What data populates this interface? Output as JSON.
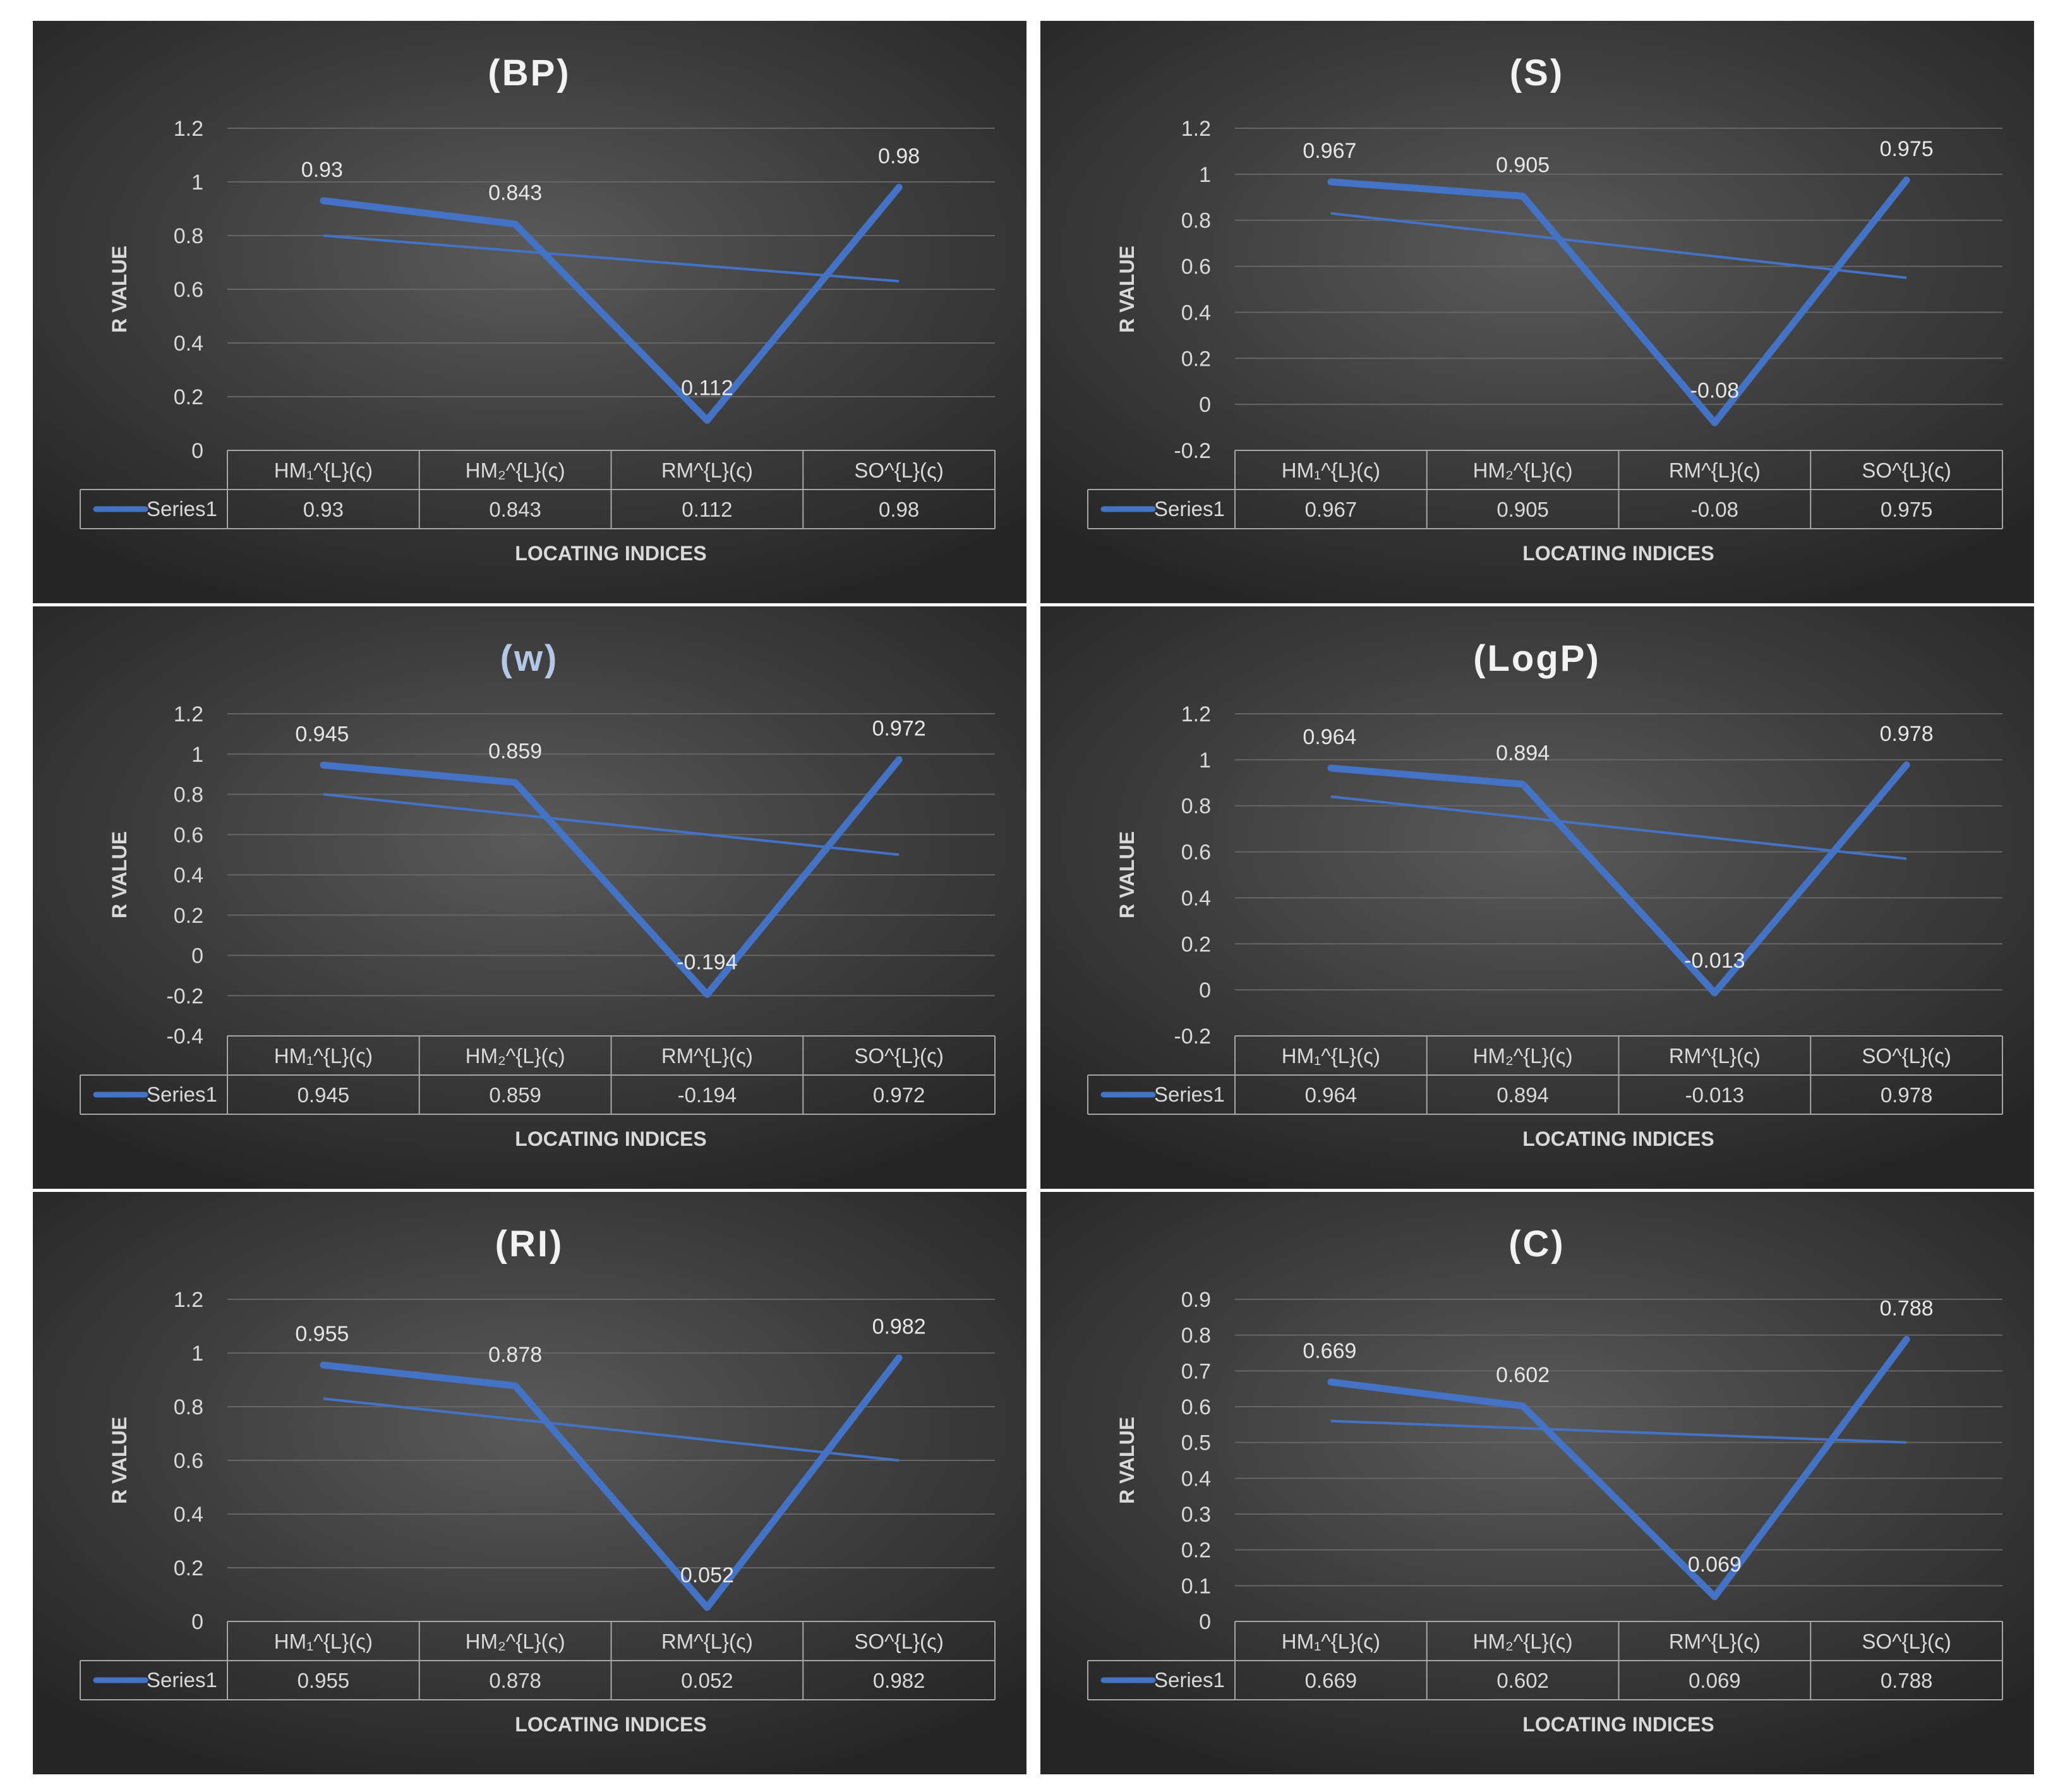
{
  "chart_data": [
    {
      "type": "line",
      "title": "(BP)",
      "title_color": "#f2f2f2",
      "ylabel": "R VALUE",
      "xlabel": "LOCATING INDICES",
      "categories": [
        "HM₁^{L}(ς)",
        "HM₂^{L}(ς)",
        "RM^{L}(ς)",
        "SO^{L}(ς)"
      ],
      "ylim": [
        0,
        1.2
      ],
      "yticks": [
        0,
        0.2,
        0.4,
        0.6,
        0.8,
        1,
        1.2
      ],
      "ytick_labels": [
        "0",
        "0.2",
        "0.4",
        "0.6",
        "0.8",
        "1",
        "1.2"
      ],
      "series": [
        {
          "name": "Series1",
          "values": [
            0.93,
            0.843,
            0.112,
            0.98
          ],
          "labels": [
            "0.93",
            "0.843",
            "0.112",
            "0.98"
          ]
        }
      ],
      "trendline": [
        0.8,
        0.63
      ],
      "grid": true,
      "legend": "data-table"
    },
    {
      "type": "line",
      "title": "(S)",
      "title_color": "#f2f2f2",
      "ylabel": "R VALUE",
      "xlabel": "LOCATING INDICES",
      "categories": [
        "HM₁^{L}(ς)",
        "HM₂^{L}(ς)",
        "RM^{L}(ς)",
        "SO^{L}(ς)"
      ],
      "ylim": [
        -0.2,
        1.2
      ],
      "yticks": [
        -0.2,
        0,
        0.2,
        0.4,
        0.6,
        0.8,
        1,
        1.2
      ],
      "ytick_labels": [
        "-0.2",
        "0",
        "0.2",
        "0.4",
        "0.6",
        "0.8",
        "1",
        "1.2"
      ],
      "series": [
        {
          "name": "Series1",
          "values": [
            0.967,
            0.905,
            -0.08,
            0.975
          ],
          "labels": [
            "0.967",
            "0.905",
            "-0.08",
            "0.975"
          ]
        }
      ],
      "trendline": [
        0.83,
        0.55
      ],
      "grid": true,
      "legend": "data-table"
    },
    {
      "type": "line",
      "title": "(w)",
      "title_color": "#b4c7e7",
      "ylabel": "R VALUE",
      "xlabel": "LOCATING INDICES",
      "categories": [
        "HM₁^{L}(ς)",
        "HM₂^{L}(ς)",
        "RM^{L}(ς)",
        "SO^{L}(ς)"
      ],
      "ylim": [
        -0.4,
        1.2
      ],
      "yticks": [
        -0.4,
        -0.2,
        0,
        0.2,
        0.4,
        0.6,
        0.8,
        1,
        1.2
      ],
      "ytick_labels": [
        "-0.4",
        "-0.2",
        "0",
        "0.2",
        "0.4",
        "0.6",
        "0.8",
        "1",
        "1.2"
      ],
      "series": [
        {
          "name": "Series1",
          "values": [
            0.945,
            0.859,
            -0.194,
            0.972
          ],
          "labels": [
            "0.945",
            "0.859",
            "-0.194",
            "0.972"
          ]
        }
      ],
      "trendline": [
        0.8,
        0.5
      ],
      "grid": true,
      "legend": "data-table"
    },
    {
      "type": "line",
      "title": "(LogP)",
      "title_color": "#f2f2f2",
      "ylabel": "R VALUE",
      "xlabel": "LOCATING INDICES",
      "categories": [
        "HM₁^{L}(ς)",
        "HM₂^{L}(ς)",
        "RM^{L}(ς)",
        "SO^{L}(ς)"
      ],
      "ylim": [
        -0.2,
        1.2
      ],
      "yticks": [
        -0.2,
        0,
        0.2,
        0.4,
        0.6,
        0.8,
        1,
        1.2
      ],
      "ytick_labels": [
        "-0.2",
        "0",
        "0.2",
        "0.4",
        "0.6",
        "0.8",
        "1",
        "1.2"
      ],
      "series": [
        {
          "name": "Series1",
          "values": [
            0.964,
            0.894,
            -0.013,
            0.978
          ],
          "labels": [
            "0.964",
            "0.894",
            "-0.013",
            "0.978"
          ]
        }
      ],
      "trendline": [
        0.84,
        0.57
      ],
      "grid": true,
      "legend": "data-table"
    },
    {
      "type": "line",
      "title": "(RI)",
      "title_color": "#f2f2f2",
      "ylabel": "R VALUE",
      "xlabel": "LOCATING INDICES",
      "categories": [
        "HM₁^{L}(ς)",
        "HM₂^{L}(ς)",
        "RM^{L}(ς)",
        "SO^{L}(ς)"
      ],
      "ylim": [
        0,
        1.2
      ],
      "yticks": [
        0,
        0.2,
        0.4,
        0.6,
        0.8,
        1,
        1.2
      ],
      "ytick_labels": [
        "0",
        "0.2",
        "0.4",
        "0.6",
        "0.8",
        "1",
        "1.2"
      ],
      "series": [
        {
          "name": "Series1",
          "values": [
            0.955,
            0.878,
            0.052,
            0.982
          ],
          "labels": [
            "0.955",
            "0.878",
            "0.052",
            "0.982"
          ]
        }
      ],
      "trendline": [
        0.83,
        0.6
      ],
      "grid": true,
      "legend": "data-table"
    },
    {
      "type": "line",
      "title": "(C)",
      "title_color": "#f2f2f2",
      "ylabel": "R VALUE",
      "xlabel": "LOCATING INDICES",
      "categories": [
        "HM₁^{L}(ς)",
        "HM₂^{L}(ς)",
        "RM^{L}(ς)",
        "SO^{L}(ς)"
      ],
      "ylim": [
        0,
        0.9
      ],
      "yticks": [
        0,
        0.1,
        0.2,
        0.3,
        0.4,
        0.5,
        0.6,
        0.7,
        0.8,
        0.9
      ],
      "ytick_labels": [
        "0",
        "0.1",
        "0.2",
        "0.3",
        "0.4",
        "0.5",
        "0.6",
        "0.7",
        "0.8",
        "0.9"
      ],
      "series": [
        {
          "name": "Series1",
          "values": [
            0.669,
            0.602,
            0.069,
            0.788
          ],
          "labels": [
            "0.669",
            "0.602",
            "0.069",
            "0.788"
          ]
        }
      ],
      "trendline": [
        0.56,
        0.5
      ],
      "grid": true,
      "legend": "data-table"
    }
  ],
  "colors": {
    "series": "#4472c4",
    "grid": "#666666",
    "table_border": "#a6a6a6",
    "text": "#d9d9d9"
  }
}
